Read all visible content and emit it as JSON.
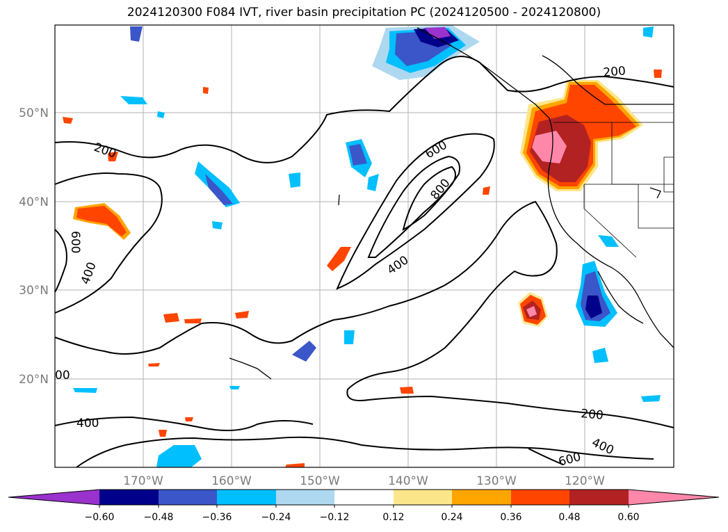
{
  "title": "2024120300 F084 IVT, river basin precipitation PC (2024120500 - 2024120800)",
  "lat_labels": [
    "50°N",
    "40°N",
    "30°N",
    "20°N"
  ],
  "lon_labels": [
    "170°W",
    "160°W",
    "150°W",
    "140°W",
    "130°W",
    "120°W"
  ],
  "contour_labels": [
    "200",
    "200",
    "200",
    "400",
    "400",
    "400",
    "400",
    "600",
    "600",
    "600",
    "800",
    "00"
  ],
  "colorbar": {
    "ticks": [
      "−0.60",
      "−0.48",
      "−0.36",
      "−0.24",
      "−0.12",
      "0.12",
      "0.24",
      "0.36",
      "0.48",
      "0.60"
    ],
    "colors": [
      "#9a32cd",
      "#00008b",
      "#3a56c9",
      "#00bfff",
      "#add8f0",
      "#ffffff",
      "#fce68a",
      "#ffa500",
      "#ff4500",
      "#b22222",
      "#ff88aa"
    ]
  }
}
